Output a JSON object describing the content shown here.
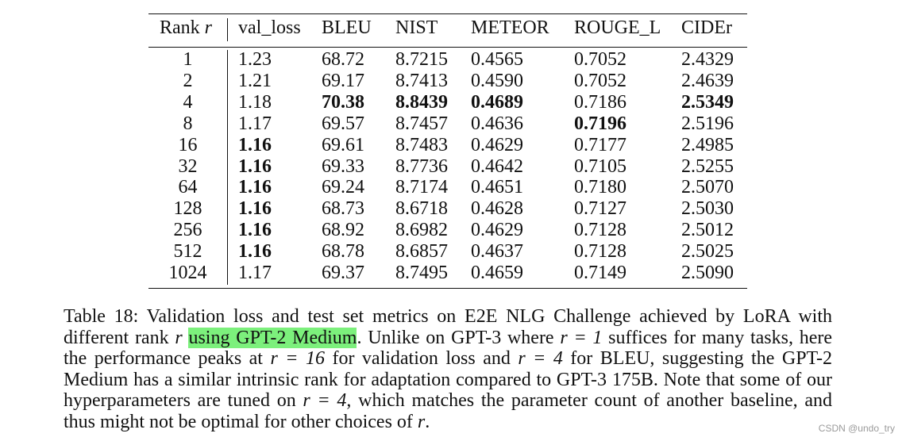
{
  "table": {
    "header": {
      "rank": "Rank",
      "rank_var": "r",
      "columns": [
        "val_loss",
        "BLEU",
        "NIST",
        "METEOR",
        "ROUGE_L",
        "CIDEr"
      ]
    },
    "rows": [
      {
        "rank": "1",
        "val_loss": "1.23",
        "bleu": "68.72",
        "nist": "8.7215",
        "meteor": "0.4565",
        "rouge_l": "0.7052",
        "cider": "2.4329"
      },
      {
        "rank": "2",
        "val_loss": "1.21",
        "bleu": "69.17",
        "nist": "8.7413",
        "meteor": "0.4590",
        "rouge_l": "0.7052",
        "cider": "2.4639"
      },
      {
        "rank": "4",
        "val_loss": "1.18",
        "bleu": "70.38",
        "nist": "8.8439",
        "meteor": "0.4689",
        "rouge_l": "0.7186",
        "cider": "2.5349",
        "bold": [
          "bleu",
          "nist",
          "meteor",
          "cider"
        ]
      },
      {
        "rank": "8",
        "val_loss": "1.17",
        "bleu": "69.57",
        "nist": "8.7457",
        "meteor": "0.4636",
        "rouge_l": "0.7196",
        "cider": "2.5196",
        "bold": [
          "rouge_l"
        ]
      },
      {
        "rank": "16",
        "val_loss": "1.16",
        "bleu": "69.61",
        "nist": "8.7483",
        "meteor": "0.4629",
        "rouge_l": "0.7177",
        "cider": "2.4985",
        "bold": [
          "val_loss"
        ]
      },
      {
        "rank": "32",
        "val_loss": "1.16",
        "bleu": "69.33",
        "nist": "8.7736",
        "meteor": "0.4642",
        "rouge_l": "0.7105",
        "cider": "2.5255",
        "bold": [
          "val_loss"
        ]
      },
      {
        "rank": "64",
        "val_loss": "1.16",
        "bleu": "69.24",
        "nist": "8.7174",
        "meteor": "0.4651",
        "rouge_l": "0.7180",
        "cider": "2.5070",
        "bold": [
          "val_loss"
        ]
      },
      {
        "rank": "128",
        "val_loss": "1.16",
        "bleu": "68.73",
        "nist": "8.6718",
        "meteor": "0.4628",
        "rouge_l": "0.7127",
        "cider": "2.5030",
        "bold": [
          "val_loss"
        ]
      },
      {
        "rank": "256",
        "val_loss": "1.16",
        "bleu": "68.92",
        "nist": "8.6982",
        "meteor": "0.4629",
        "rouge_l": "0.7128",
        "cider": "2.5012",
        "bold": [
          "val_loss"
        ]
      },
      {
        "rank": "512",
        "val_loss": "1.16",
        "bleu": "68.78",
        "nist": "8.6857",
        "meteor": "0.4637",
        "rouge_l": "0.7128",
        "cider": "2.5025",
        "bold": [
          "val_loss"
        ]
      },
      {
        "rank": "1024",
        "val_loss": "1.17",
        "bleu": "69.37",
        "nist": "8.7495",
        "meteor": "0.4659",
        "rouge_l": "0.7149",
        "cider": "2.5090"
      }
    ]
  },
  "caption": {
    "line1": "Table 18: Validation loss and test set metrics on E2E NLG Challenge achieved by LoRA with",
    "line2_pre": "different rank ",
    "line2_var": "r",
    "line2_sp": " ",
    "line2_highlight": "using GPT-2 Medium",
    "line2_post": ". Unlike on GPT-3 where ",
    "line2_math": "r = 1",
    "line2_end": " suffices for many tasks, here",
    "line3_pre": "the performance peaks at ",
    "line3_math1": "r = 16",
    "line3_mid": " for validation loss and ",
    "line3_math2": "r = 4",
    "line3_end": " for BLEU, suggesting the GPT-2",
    "line4": "Medium has a similar intrinsic rank for adaptation compared to GPT-3 175B. Note that some of our",
    "line5_pre": "hyperparameters are tuned on ",
    "line5_math": "r = 4",
    "line5_end": ", which matches the parameter count of another baseline, and",
    "line6_pre": "thus might not be optimal for other choices of ",
    "line6_var": "r",
    "line6_end": "."
  },
  "watermark": "CSDN @undo_try",
  "colors": {
    "highlight": "#7cf07c",
    "text": "#111111",
    "watermark": "#9a9a9a"
  }
}
